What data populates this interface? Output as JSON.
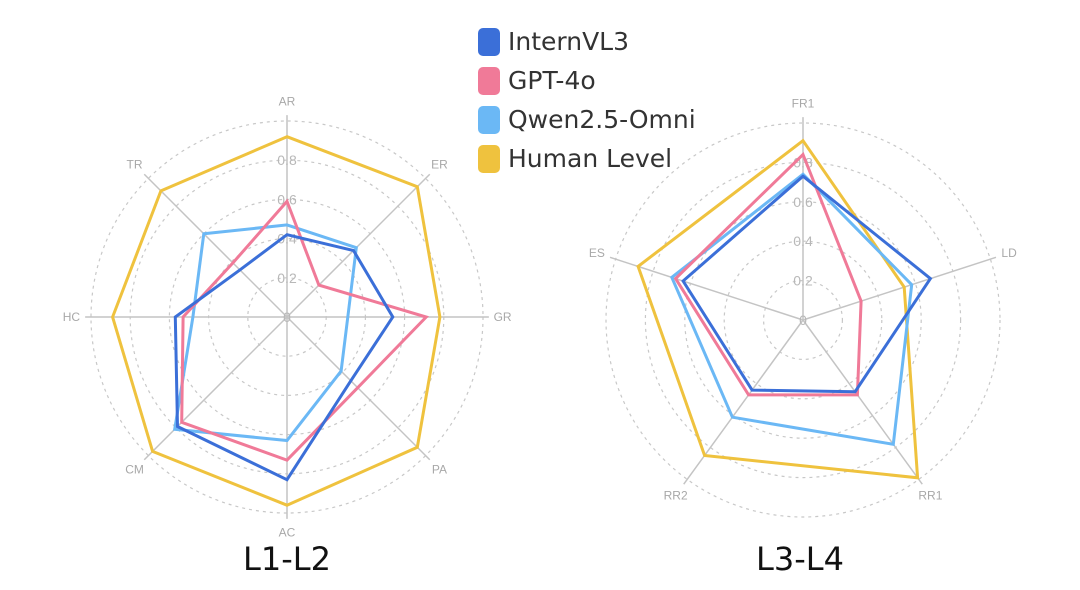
{
  "legend": [
    "InternVL3",
    "GPT-4o",
    "Qwen2.5-Omni",
    "Human Level"
  ],
  "colors": {
    "InternVL3": "#3b6fd8",
    "GPT-4o": "#f07a98",
    "Qwen2.5-Omni": "#6bb8f5",
    "Human Level": "#efc23e"
  },
  "chart_data": [
    {
      "type": "radar",
      "title": "L1-L2",
      "axes": [
        "AR",
        "ER",
        "GR",
        "PA",
        "AC",
        "CM",
        "HC",
        "TR"
      ],
      "rlim": [
        0,
        1
      ],
      "ticks": [
        "0",
        "0.2",
        "0.4",
        "0.6",
        "0.8"
      ],
      "grid": true,
      "series": [
        {
          "name": "InternVL3",
          "values": [
            0.42,
            0.48,
            0.54,
            0.46,
            0.83,
            0.79,
            0.57,
            0.34
          ]
        },
        {
          "name": "GPT-4o",
          "values": [
            0.59,
            0.23,
            0.71,
            0.51,
            0.73,
            0.76,
            0.53,
            0.39
          ]
        },
        {
          "name": "Qwen2.5-Omni",
          "values": [
            0.47,
            0.5,
            0.31,
            0.39,
            0.63,
            0.81,
            0.48,
            0.6
          ]
        },
        {
          "name": "Human Level",
          "values": [
            0.92,
            0.94,
            0.78,
            0.94,
            0.96,
            0.97,
            0.89,
            0.91
          ]
        }
      ]
    },
    {
      "type": "radar",
      "title": "L3-L4",
      "axes": [
        "FR1",
        "LD",
        "RR1",
        "RR2",
        "ES"
      ],
      "rlim": [
        0,
        1
      ],
      "ticks": [
        "0",
        "0.2",
        "0.4",
        "0.6",
        "0.8"
      ],
      "grid": true,
      "series": [
        {
          "name": "InternVL3",
          "values": [
            0.73,
            0.68,
            0.45,
            0.44,
            0.64
          ]
        },
        {
          "name": "GPT-4o",
          "values": [
            0.84,
            0.31,
            0.47,
            0.47,
            0.68
          ]
        },
        {
          "name": "Qwen2.5-Omni",
          "values": [
            0.74,
            0.58,
            0.78,
            0.61,
            0.7
          ]
        },
        {
          "name": "Human Level",
          "values": [
            0.91,
            0.54,
            0.99,
            0.85,
            0.88
          ]
        }
      ]
    }
  ]
}
